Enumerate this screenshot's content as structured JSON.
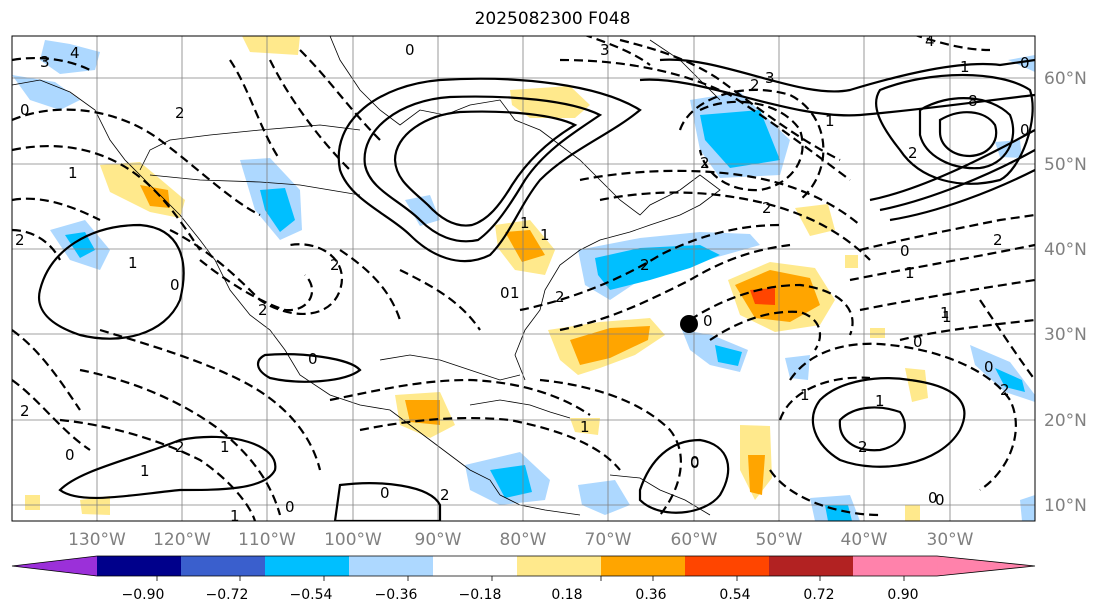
{
  "title": "2025082300 F048",
  "map": {
    "lon_ticks": [
      "130°W",
      "120°W",
      "110°W",
      "100°W",
      "90°W",
      "80°W",
      "70°W",
      "60°W",
      "50°W",
      "40°W",
      "30°W"
    ],
    "lat_ticks": [
      "60°N",
      "50°N",
      "40°N",
      "30°N",
      "20°N",
      "10°N"
    ],
    "contour_labels": [
      "3",
      "4",
      "0",
      "2",
      "3",
      "4",
      "1",
      "2",
      "3",
      "8",
      "0",
      "2",
      "1",
      "2",
      "0",
      "1",
      "1",
      "2",
      "0",
      "1",
      "2",
      "0",
      "1",
      "0",
      "0",
      "2",
      "0",
      "1",
      "2",
      "1",
      "0",
      "1",
      "2",
      "1",
      "2",
      "0",
      "1",
      "0",
      "1",
      "0",
      "2",
      "0",
      "2",
      "2",
      "0",
      "2",
      "1",
      "1",
      "1",
      "2",
      "0",
      "2",
      "0",
      "0",
      "1",
      "0"
    ],
    "marker": "storm-position"
  },
  "colorbar": {
    "ticks": [
      "−0.90",
      "−0.72",
      "−0.54",
      "−0.36",
      "−0.18",
      "0.18",
      "0.36",
      "0.54",
      "0.72",
      "0.90"
    ],
    "colors": [
      "#9b30d9",
      "#00008b",
      "#3a5fcd",
      "#00bfff",
      "#add8ff",
      "#ffffff",
      "#ffe98c",
      "#ffa500",
      "#ff4500",
      "#b22222",
      "#ff82ab"
    ]
  }
}
